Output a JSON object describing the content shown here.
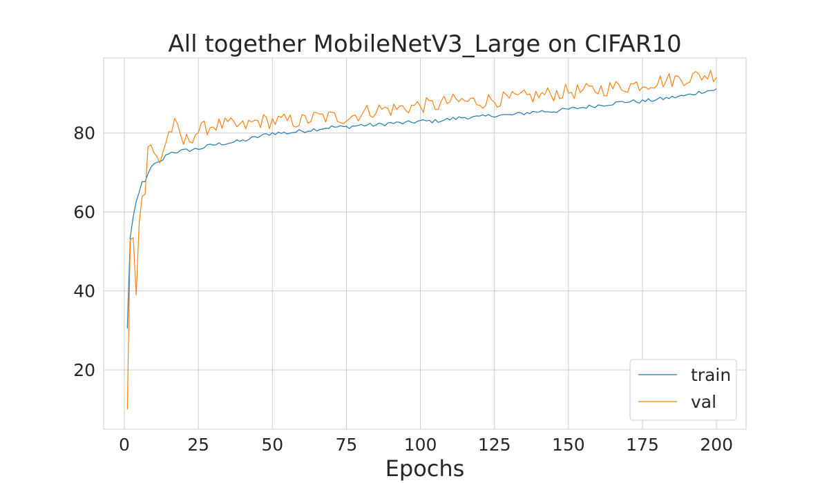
{
  "chart_data": {
    "type": "line",
    "title": "All together MobileNetV3_Large on CIFAR10",
    "xlabel": "Epochs",
    "ylabel": "",
    "xlim": [
      -7,
      210
    ],
    "ylim": [
      5,
      99
    ],
    "xticks": [
      0,
      25,
      50,
      75,
      100,
      125,
      150,
      175,
      200
    ],
    "yticks": [
      20,
      40,
      60,
      80
    ],
    "grid": true,
    "legend_position": "bottom-right",
    "colors": {
      "train": "#1f77b4",
      "val": "#ff7f0e",
      "grid": "#cccccc",
      "frame": "#cccccc"
    },
    "series": [
      {
        "name": "train",
        "anchors": [
          [
            1,
            30.5
          ],
          [
            2,
            53.5
          ],
          [
            3,
            59
          ],
          [
            4,
            62.5
          ],
          [
            5,
            64.5
          ],
          [
            6,
            67.5
          ],
          [
            7,
            67.5
          ],
          [
            8,
            70
          ],
          [
            9,
            71
          ],
          [
            10,
            72
          ],
          [
            12,
            72.5
          ],
          [
            15,
            75
          ],
          [
            20,
            75.5
          ],
          [
            25,
            76
          ],
          [
            30,
            77
          ],
          [
            35,
            77.5
          ],
          [
            40,
            78
          ],
          [
            45,
            79
          ],
          [
            50,
            80
          ],
          [
            55,
            80
          ],
          [
            60,
            80.5
          ],
          [
            65,
            81
          ],
          [
            70,
            81.5
          ],
          [
            75,
            81.5
          ],
          [
            80,
            82
          ],
          [
            85,
            82
          ],
          [
            90,
            82.5
          ],
          [
            95,
            82.5
          ],
          [
            100,
            83
          ],
          [
            105,
            83
          ],
          [
            110,
            83.5
          ],
          [
            115,
            84
          ],
          [
            120,
            84
          ],
          [
            125,
            84.5
          ],
          [
            130,
            84.5
          ],
          [
            135,
            85
          ],
          [
            140,
            85.5
          ],
          [
            145,
            85.5
          ],
          [
            150,
            86
          ],
          [
            155,
            86.5
          ],
          [
            160,
            87
          ],
          [
            165,
            87.5
          ],
          [
            170,
            88
          ],
          [
            175,
            88
          ],
          [
            180,
            88.5
          ],
          [
            185,
            89
          ],
          [
            190,
            89.5
          ],
          [
            195,
            90.5
          ],
          [
            200,
            91
          ]
        ],
        "jitter": 0.5
      },
      {
        "name": "val",
        "anchors": [
          [
            1,
            10
          ],
          [
            2,
            53
          ],
          [
            3,
            53.5
          ],
          [
            4,
            39
          ],
          [
            5,
            57
          ],
          [
            6,
            64
          ],
          [
            7,
            64.5
          ],
          [
            8,
            76.5
          ],
          [
            9,
            77
          ],
          [
            10,
            74.5
          ],
          [
            12,
            73
          ],
          [
            15,
            80
          ],
          [
            17,
            82
          ],
          [
            20,
            77.5
          ],
          [
            25,
            80.5
          ],
          [
            30,
            82
          ],
          [
            35,
            82
          ],
          [
            40,
            81.5
          ],
          [
            45,
            83
          ],
          [
            50,
            83
          ],
          [
            55,
            83
          ],
          [
            60,
            83
          ],
          [
            65,
            84
          ],
          [
            70,
            84
          ],
          [
            75,
            84
          ],
          [
            80,
            85
          ],
          [
            85,
            86
          ],
          [
            90,
            86
          ],
          [
            95,
            86.5
          ],
          [
            100,
            87
          ],
          [
            105,
            87
          ],
          [
            110,
            88
          ],
          [
            115,
            88
          ],
          [
            120,
            88
          ],
          [
            125,
            88.5
          ],
          [
            130,
            88.5
          ],
          [
            135,
            89
          ],
          [
            140,
            89.5
          ],
          [
            145,
            90
          ],
          [
            150,
            90.5
          ],
          [
            155,
            90.5
          ],
          [
            160,
            91
          ],
          [
            165,
            91.5
          ],
          [
            170,
            92
          ],
          [
            175,
            92.5
          ],
          [
            180,
            93
          ],
          [
            185,
            93.5
          ],
          [
            190,
            94
          ],
          [
            195,
            94.5
          ],
          [
            200,
            95
          ]
        ],
        "jitter": 2.0,
        "overrides": {
          "2": 53,
          "3": 53.5,
          "4": 39,
          "5": 57,
          "6": 64,
          "7": 64.5,
          "8": 76.5,
          "9": 77
        }
      }
    ]
  }
}
